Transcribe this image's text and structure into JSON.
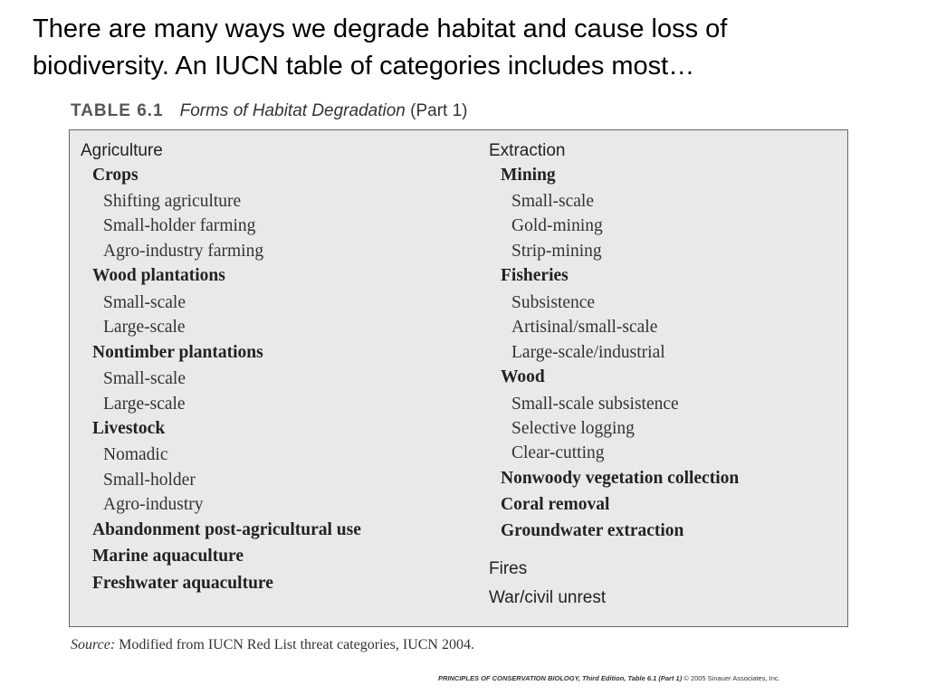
{
  "headline": {
    "line1": "There are many ways we degrade habitat and cause loss of",
    "line2": "biodiversity. An IUCN table of categories includes most…"
  },
  "table": {
    "number": "TABLE 6.1",
    "title": "Forms of Habitat Degradation",
    "part": "(Part 1)",
    "left_column": [
      {
        "level": 0,
        "text": "Agriculture"
      },
      {
        "level": 1,
        "text": "Crops"
      },
      {
        "level": 2,
        "text": "Shifting agriculture"
      },
      {
        "level": 2,
        "text": "Small-holder farming"
      },
      {
        "level": 2,
        "text": "Agro-industry farming"
      },
      {
        "level": 1,
        "text": "Wood plantations"
      },
      {
        "level": 2,
        "text": "Small-scale"
      },
      {
        "level": 2,
        "text": "Large-scale"
      },
      {
        "level": 1,
        "text": "Nontimber plantations"
      },
      {
        "level": 2,
        "text": "Small-scale"
      },
      {
        "level": 2,
        "text": "Large-scale"
      },
      {
        "level": 1,
        "text": "Livestock"
      },
      {
        "level": 2,
        "text": "Nomadic"
      },
      {
        "level": 2,
        "text": "Small-holder"
      },
      {
        "level": 2,
        "text": "Agro-industry"
      },
      {
        "level": 1,
        "text": "Abandonment post-agricultural use"
      },
      {
        "level": 1,
        "text": "Marine aquaculture"
      },
      {
        "level": 1,
        "text": "Freshwater aquaculture"
      }
    ],
    "right_column": [
      {
        "level": 0,
        "text": "Extraction"
      },
      {
        "level": 1,
        "text": "Mining"
      },
      {
        "level": 2,
        "text": "Small-scale"
      },
      {
        "level": 2,
        "text": "Gold-mining"
      },
      {
        "level": 2,
        "text": "Strip-mining"
      },
      {
        "level": 1,
        "text": "Fisheries"
      },
      {
        "level": 2,
        "text": "Subsistence"
      },
      {
        "level": 2,
        "text": "Artisinal/small-scale"
      },
      {
        "level": 2,
        "text": "Large-scale/industrial"
      },
      {
        "level": 1,
        "text": "Wood"
      },
      {
        "level": 2,
        "text": "Small-scale subsistence"
      },
      {
        "level": 2,
        "text": "Selective logging"
      },
      {
        "level": 2,
        "text": "Clear-cutting"
      },
      {
        "level": 1,
        "text": "Nonwoody vegetation collection"
      },
      {
        "level": 1,
        "text": "Coral removal"
      },
      {
        "level": 1,
        "text": "Groundwater extraction"
      },
      {
        "level": 0,
        "text": "Fires"
      },
      {
        "level": 0,
        "text": "War/civil unrest"
      }
    ]
  },
  "source": {
    "label": "Source:",
    "text": "Modified from IUCN Red List threat categories, IUCN 2004."
  },
  "credit": {
    "book": "PRINCIPLES OF CONSERVATION BIOLOGY, Third Edition, Table 6.1 (Part 1)",
    "copyright": "© 2005 Sinauer Associates, Inc."
  },
  "colors": {
    "table_background": "#e9e9e9",
    "table_border": "#666666"
  }
}
